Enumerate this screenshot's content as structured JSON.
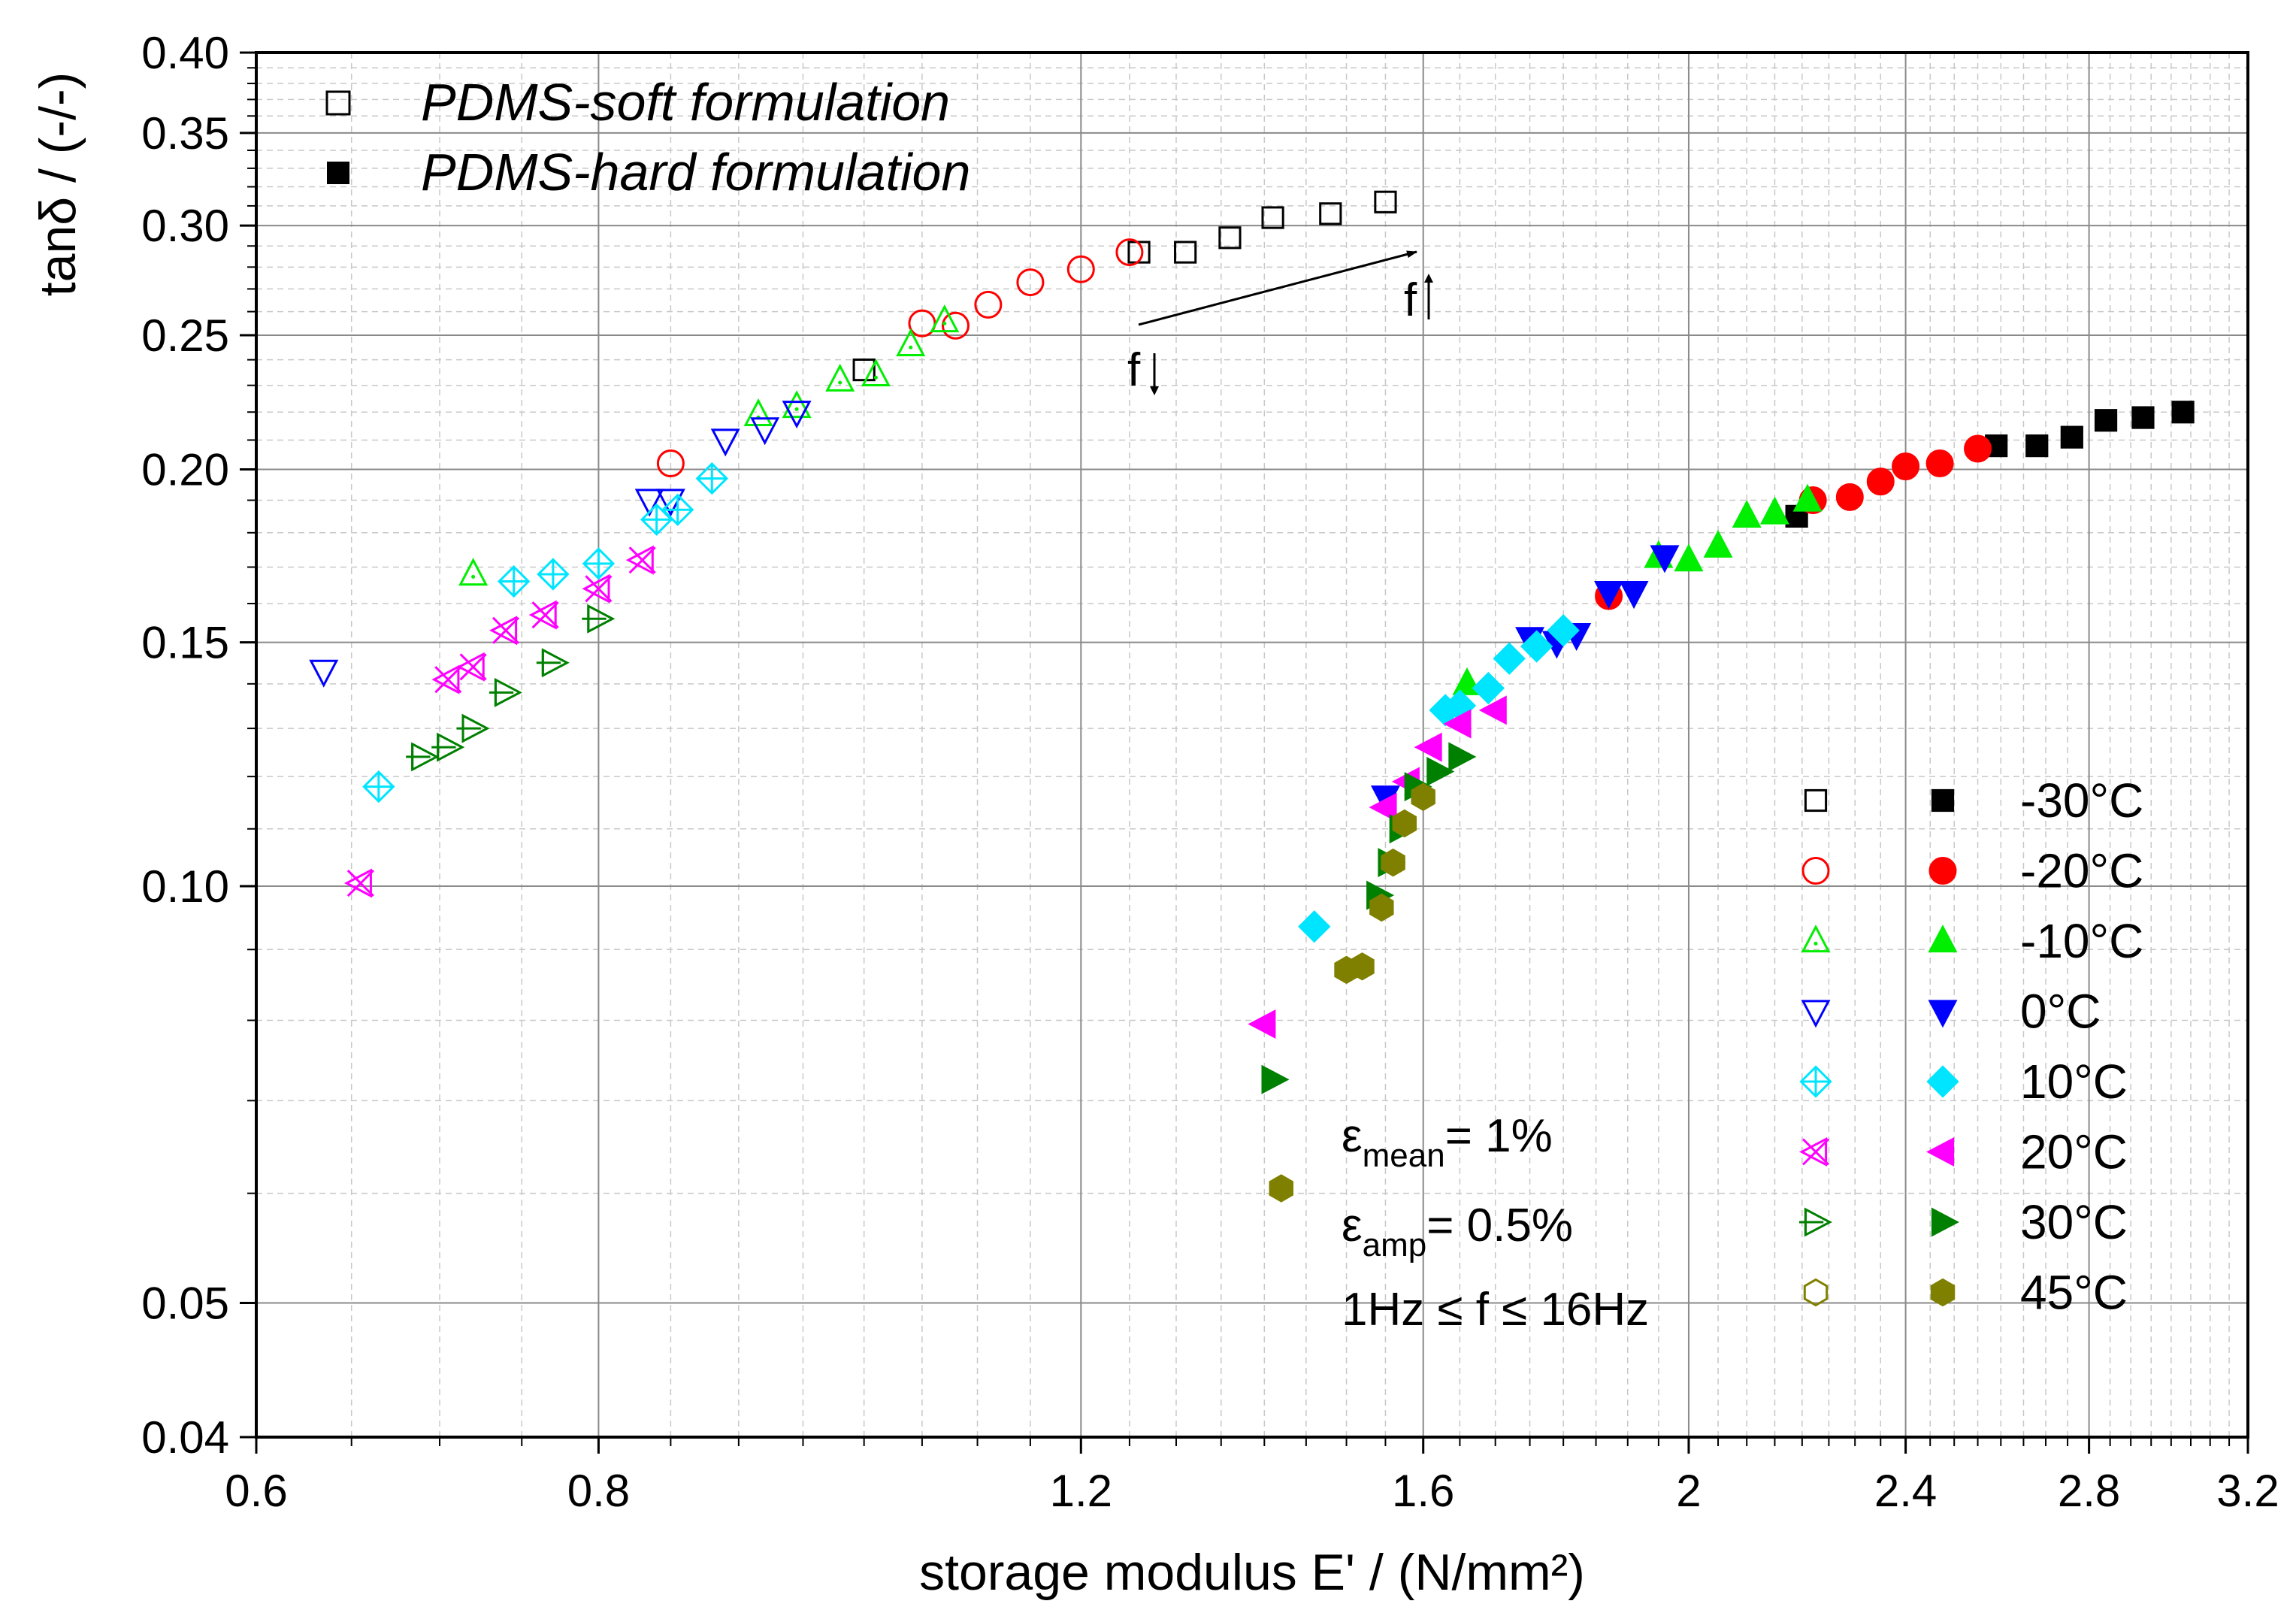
{
  "chart_data": {
    "type": "scatter",
    "title": "",
    "xlabel": "storage modulus E' / (N/mm²)",
    "ylabel": "tanδ / (-/-)",
    "xscale": "log",
    "yscale": "log",
    "xlim": [
      0.6,
      3.2
    ],
    "ylim": [
      0.04,
      0.4
    ],
    "x_ticks": [
      "0.6",
      "0.8",
      "1.2",
      "1.6",
      "2",
      "2.4",
      "2.8",
      "3.2"
    ],
    "x_tick_values": [
      0.6,
      0.8,
      1.2,
      1.6,
      2.0,
      2.4,
      2.8,
      3.2
    ],
    "y_ticks": [
      "0.04",
      "0.05",
      "0.10",
      "0.15",
      "0.20",
      "0.25",
      "0.30",
      "0.35",
      "0.40"
    ],
    "y_tick_values": [
      0.04,
      0.05,
      0.1,
      0.15,
      0.2,
      0.25,
      0.3,
      0.35,
      0.4
    ],
    "grid": true,
    "legend_formulation": [
      {
        "label": "PDMS-soft formulation",
        "marker": "open-square"
      },
      {
        "label": "PDMS-hard formulation",
        "marker": "filled-square"
      }
    ],
    "legend_temperature": [
      {
        "label": "-30°C",
        "color": "#000000",
        "open_marker": "square",
        "filled_marker": "square"
      },
      {
        "label": "-20°C",
        "color": "#ff0000",
        "open_marker": "circle",
        "filled_marker": "circle"
      },
      {
        "label": "-10°C",
        "color": "#00ee00",
        "open_marker": "triangle-up-dot",
        "filled_marker": "triangle-up"
      },
      {
        "label": "0°C",
        "color": "#0000ff",
        "open_marker": "triangle-down",
        "filled_marker": "triangle-down"
      },
      {
        "label": "10°C",
        "color": "#00e5ff",
        "open_marker": "diamond-cross",
        "filled_marker": "diamond"
      },
      {
        "label": "20°C",
        "color": "#ff00ff",
        "open_marker": "triangle-left-x",
        "filled_marker": "triangle-left"
      },
      {
        "label": "30°C",
        "color": "#008000",
        "open_marker": "triangle-right-plus",
        "filled_marker": "triangle-right"
      },
      {
        "label": "45°C",
        "color": "#808000",
        "open_marker": "hexagon",
        "filled_marker": "hexagon"
      }
    ],
    "annotations": {
      "eps_symbol": "ε",
      "eps_mean_sub": "mean",
      "eps_mean_value": "= 1%",
      "eps_amp_sub": "amp",
      "eps_amp_value": "= 0.5%",
      "freq_range": "1Hz ≤ f ≤ 16Hz",
      "arrow_low": "f",
      "arrow_high": "f"
    },
    "series": [
      {
        "name": "soft -30°C",
        "formulation": "soft",
        "temp": "-30°C",
        "marker": "square",
        "filled": false,
        "color": "#000000",
        "x": [
          1.0,
          1.26,
          1.31,
          1.36,
          1.41,
          1.48,
          1.55
        ],
        "y": [
          0.236,
          0.287,
          0.287,
          0.294,
          0.304,
          0.306,
          0.312
        ]
      },
      {
        "name": "soft -20°C",
        "formulation": "soft",
        "temp": "-20°C",
        "marker": "circle",
        "filled": false,
        "color": "#ff0000",
        "x": [
          0.85,
          1.05,
          1.08,
          1.11,
          1.15,
          1.2,
          1.25
        ],
        "y": [
          0.202,
          0.255,
          0.254,
          0.263,
          0.273,
          0.279,
          0.287
        ]
      },
      {
        "name": "soft -10°C",
        "formulation": "soft",
        "temp": "-10°C",
        "marker": "triangle-up-dot",
        "filled": false,
        "color": "#00ee00",
        "x": [
          0.72,
          0.915,
          0.945,
          0.98,
          1.01,
          1.04,
          1.07
        ],
        "y": [
          0.168,
          0.219,
          0.222,
          0.232,
          0.234,
          0.246,
          0.256
        ]
      },
      {
        "name": "soft 0°C",
        "formulation": "soft",
        "temp": "0°C",
        "marker": "triangle-down",
        "filled": false,
        "color": "#0000ff",
        "x": [
          0.635,
          0.835,
          0.85,
          0.89,
          0.92,
          0.945
        ],
        "y": [
          0.143,
          0.19,
          0.19,
          0.21,
          0.214,
          0.22
        ]
      },
      {
        "name": "soft 10°C",
        "formulation": "soft",
        "temp": "10°C",
        "marker": "diamond-cross",
        "filled": false,
        "color": "#00e5ff",
        "x": [
          0.665,
          0.745,
          0.77,
          0.8,
          0.84,
          0.855,
          0.88
        ],
        "y": [
          0.118,
          0.166,
          0.168,
          0.171,
          0.184,
          0.187,
          0.197
        ]
      },
      {
        "name": "soft 20°C",
        "formulation": "soft",
        "temp": "20°C",
        "marker": "triangle-left-x",
        "filled": false,
        "color": "#ff00ff",
        "x": [
          0.655,
          0.705,
          0.72,
          0.74,
          0.765,
          0.8,
          0.83
        ],
        "y": [
          0.1005,
          0.141,
          0.144,
          0.153,
          0.157,
          0.164,
          0.172
        ]
      },
      {
        "name": "soft 30°C",
        "formulation": "soft",
        "temp": "30°C",
        "marker": "triangle-right-plus",
        "filled": false,
        "color": "#008000",
        "x": [
          0.69,
          0.705,
          0.72,
          0.74,
          0.77,
          0.8
        ],
        "y": [
          0.124,
          0.126,
          0.13,
          0.138,
          0.145,
          0.156
        ]
      },
      {
        "name": "hard -30°C",
        "formulation": "hard",
        "temp": "-30°C",
        "marker": "square",
        "filled": true,
        "color": "#000000",
        "x": [
          2.19,
          2.59,
          2.68,
          2.76,
          2.84,
          2.93,
          3.03
        ],
        "y": [
          0.185,
          0.208,
          0.208,
          0.211,
          0.217,
          0.218,
          0.22
        ]
      },
      {
        "name": "hard -20°C",
        "formulation": "hard",
        "temp": "-20°C",
        "marker": "circle",
        "filled": true,
        "color": "#ff0000",
        "x": [
          1.87,
          2.22,
          2.29,
          2.35,
          2.4,
          2.47,
          2.55
        ],
        "y": [
          0.162,
          0.19,
          0.191,
          0.196,
          0.201,
          0.202,
          0.207
        ]
      },
      {
        "name": "hard -10°C",
        "formulation": "hard",
        "temp": "-10°C",
        "marker": "triangle-up",
        "filled": true,
        "color": "#00ee00",
        "x": [
          1.66,
          1.95,
          2.0,
          2.05,
          2.1,
          2.15,
          2.21
        ],
        "y": [
          0.14,
          0.173,
          0.172,
          0.176,
          0.185,
          0.186,
          0.19
        ]
      },
      {
        "name": "hard 0°C",
        "formulation": "hard",
        "temp": "0°C",
        "marker": "triangle-down",
        "filled": true,
        "color": "#0000ff",
        "x": [
          1.55,
          1.75,
          1.79,
          1.82,
          1.87,
          1.91,
          1.96
        ],
        "y": [
          0.116,
          0.151,
          0.15,
          0.152,
          0.163,
          0.163,
          0.173
        ]
      },
      {
        "name": "hard 10°C",
        "formulation": "hard",
        "temp": "10°C",
        "marker": "diamond",
        "filled": true,
        "color": "#00e5ff",
        "x": [
          1.46,
          1.63,
          1.65,
          1.69,
          1.72,
          1.76,
          1.8
        ],
        "y": [
          0.0935,
          0.134,
          0.135,
          0.139,
          0.146,
          0.149,
          0.153
        ]
      },
      {
        "name": "hard 20°C",
        "formulation": "hard",
        "temp": "20°C",
        "marker": "triangle-left",
        "filled": true,
        "color": "#ff00ff",
        "x": [
          1.4,
          1.55,
          1.58,
          1.61,
          1.65,
          1.7
        ],
        "y": [
          0.0795,
          0.114,
          0.119,
          0.126,
          0.131,
          0.134
        ]
      },
      {
        "name": "hard 30°C",
        "formulation": "hard",
        "temp": "30°C",
        "marker": "triangle-right",
        "filled": true,
        "color": "#008000",
        "x": [
          1.41,
          1.54,
          1.555,
          1.57,
          1.59,
          1.62,
          1.65
        ],
        "y": [
          0.0725,
          0.0985,
          0.104,
          0.11,
          0.118,
          0.121,
          0.124
        ]
      },
      {
        "name": "hard 45°C",
        "formulation": "hard",
        "temp": "45°C",
        "marker": "hexagon",
        "filled": true,
        "color": "#808000",
        "x": [
          1.42,
          1.5,
          1.52,
          1.545,
          1.56,
          1.575,
          1.6
        ],
        "y": [
          0.0605,
          0.087,
          0.0875,
          0.0965,
          0.104,
          0.111,
          0.116
        ]
      }
    ]
  }
}
